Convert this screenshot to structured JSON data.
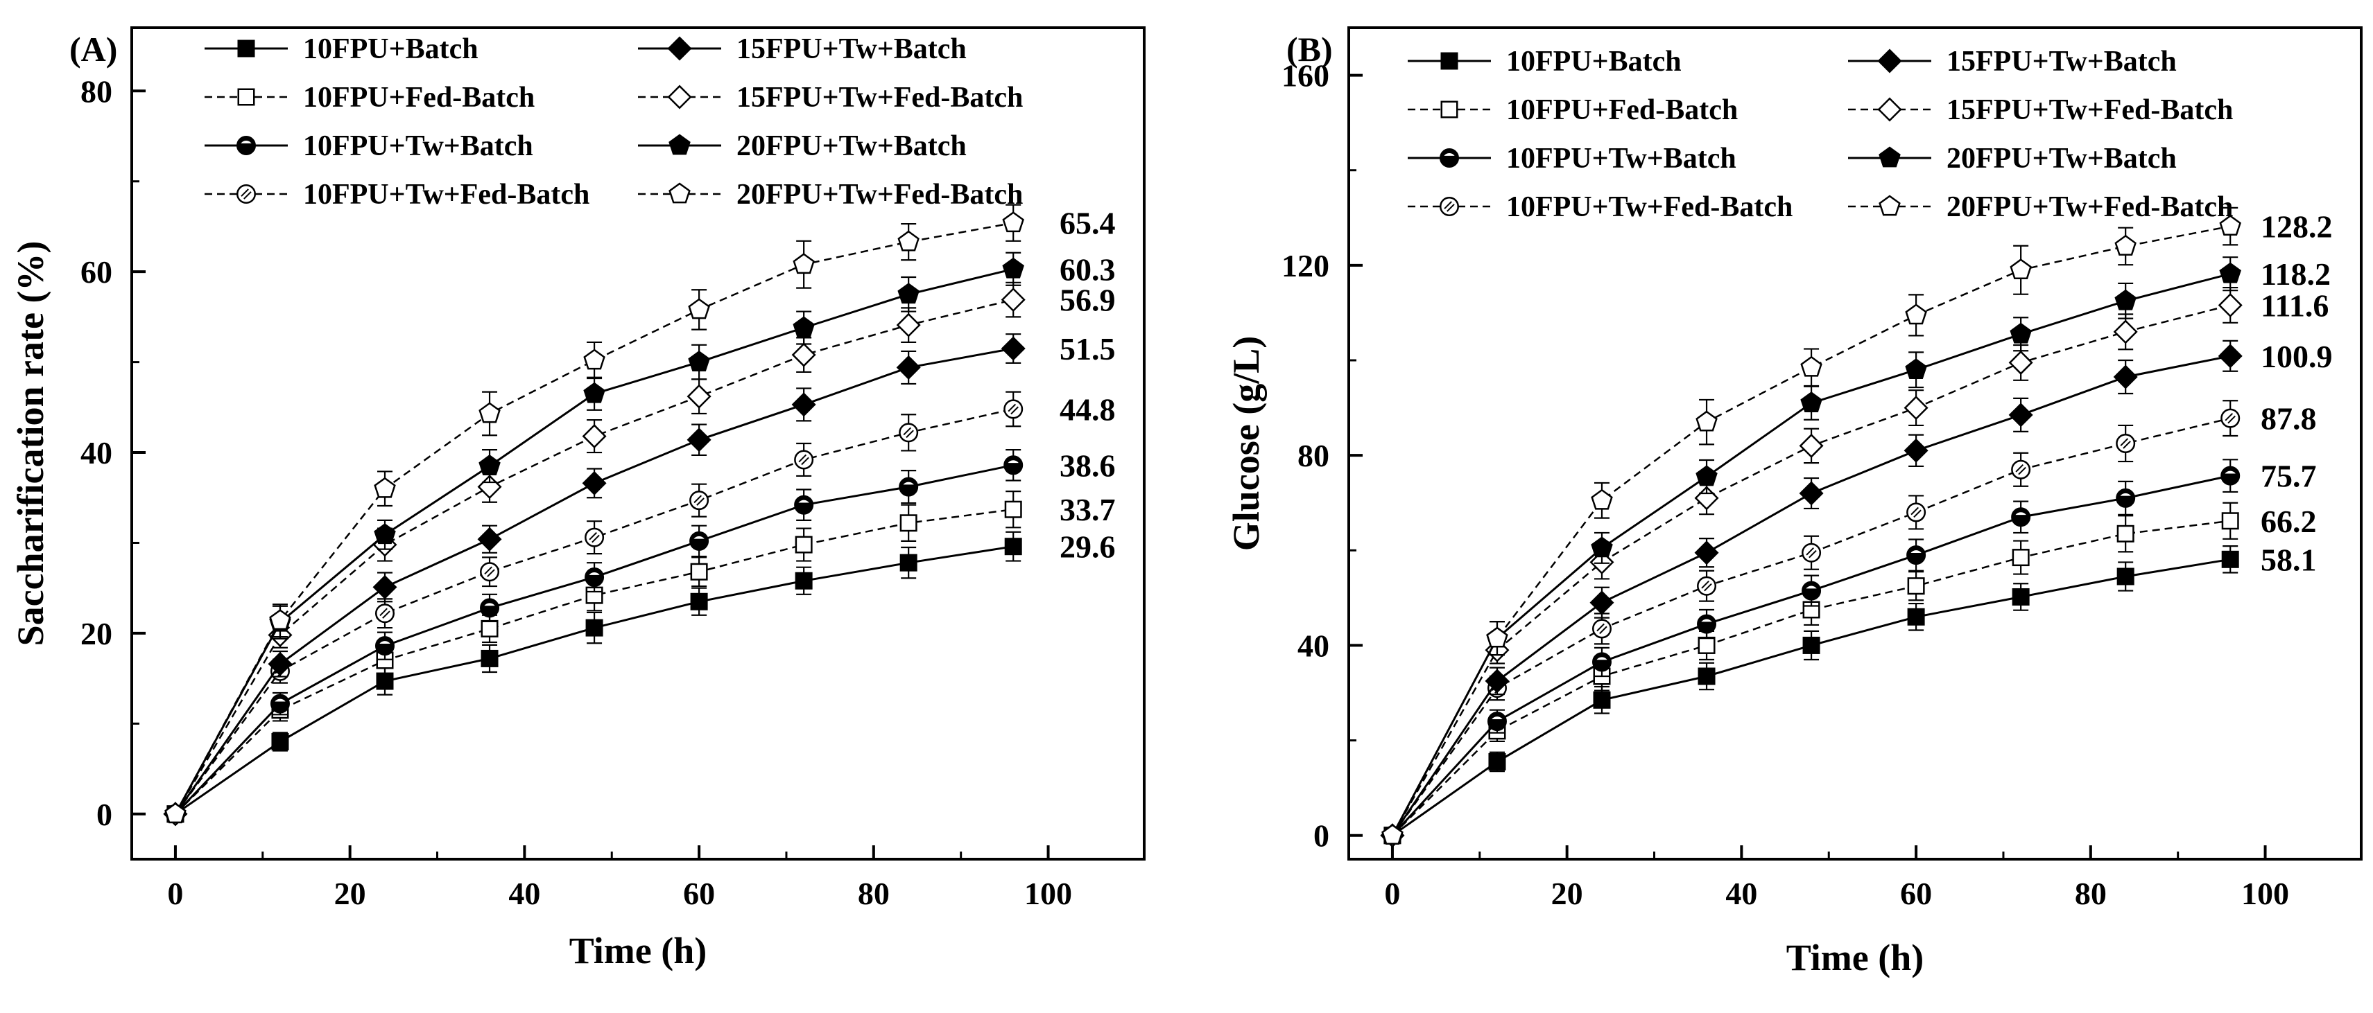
{
  "chart_data": [
    {
      "type": "line",
      "panel_label": "(A)",
      "xlabel": "Time (h)",
      "ylabel": "Saccharification rate (%)",
      "xlim": [
        -5,
        111
      ],
      "ylim": [
        -5,
        87
      ],
      "xticks": [
        0,
        20,
        40,
        60,
        80,
        100
      ],
      "yticks": [
        0,
        20,
        40,
        60,
        80
      ],
      "x": [
        0,
        12,
        24,
        36,
        48,
        60,
        72,
        84,
        96
      ],
      "series": [
        {
          "name": "10FPU+Batch",
          "marker": "square",
          "filled": true,
          "dashed": false,
          "values": [
            0,
            8.0,
            14.7,
            17.2,
            20.6,
            23.5,
            25.8,
            27.8,
            29.6
          ],
          "errors": [
            0,
            1.0,
            1.5,
            1.5,
            1.7,
            1.5,
            1.5,
            1.7,
            1.6
          ],
          "end_label": "29.6"
        },
        {
          "name": "10FPU+Fed-Batch",
          "marker": "square",
          "filled": false,
          "dashed": true,
          "values": [
            0,
            11.5,
            17.0,
            20.5,
            24.2,
            26.8,
            29.8,
            32.2,
            33.7
          ],
          "errors": [
            0,
            1.2,
            1.5,
            1.5,
            1.7,
            1.6,
            1.8,
            2.0,
            2.0
          ],
          "end_label": "33.7"
        },
        {
          "name": "10FPU+Tw+Batch",
          "marker": "halfcircle",
          "filled": true,
          "dashed": false,
          "values": [
            0,
            12.2,
            18.6,
            22.8,
            26.2,
            30.2,
            34.2,
            36.2,
            38.6
          ],
          "errors": [
            0,
            1.2,
            1.5,
            1.5,
            1.6,
            1.7,
            1.7,
            1.8,
            1.7
          ],
          "end_label": "38.6"
        },
        {
          "name": "10FPU+Tw+Fed-Batch",
          "marker": "circle-x",
          "filled": false,
          "dashed": true,
          "values": [
            0,
            15.8,
            22.2,
            26.8,
            30.6,
            34.7,
            39.2,
            42.2,
            44.8
          ],
          "errors": [
            0,
            1.3,
            1.6,
            1.6,
            1.8,
            1.8,
            1.8,
            2.0,
            1.9
          ],
          "end_label": "44.8"
        },
        {
          "name": "15FPU+Tw+Batch",
          "marker": "diamond",
          "filled": true,
          "dashed": false,
          "values": [
            0,
            16.6,
            25.1,
            30.4,
            36.6,
            41.4,
            45.3,
            49.4,
            51.5
          ],
          "errors": [
            0,
            1.4,
            1.6,
            1.5,
            1.6,
            1.7,
            1.8,
            1.8,
            1.6
          ],
          "end_label": "51.5"
        },
        {
          "name": "15FPU+Tw+Fed-Batch",
          "marker": "diamond",
          "filled": false,
          "dashed": true,
          "values": [
            0,
            19.8,
            29.8,
            36.2,
            41.8,
            46.2,
            50.8,
            54.1,
            56.9
          ],
          "errors": [
            0,
            1.4,
            1.8,
            1.7,
            1.8,
            1.9,
            1.9,
            1.9,
            1.9
          ],
          "end_label": "56.9"
        },
        {
          "name": "20FPU+Tw+Batch",
          "marker": "pentagon",
          "filled": true,
          "dashed": false,
          "values": [
            0,
            21.2,
            30.9,
            38.5,
            46.5,
            50.0,
            53.8,
            57.5,
            60.3
          ],
          "errors": [
            0,
            1.8,
            1.6,
            1.8,
            1.8,
            1.9,
            1.8,
            1.9,
            1.8
          ],
          "end_label": "60.3"
        },
        {
          "name": "20FPU+Tw+Fed-Batch",
          "marker": "pentagon",
          "filled": false,
          "dashed": true,
          "values": [
            0,
            21.4,
            36.0,
            44.3,
            50.2,
            55.8,
            60.8,
            63.3,
            65.4
          ],
          "errors": [
            0,
            1.8,
            1.9,
            2.4,
            2.0,
            2.2,
            2.6,
            2.0,
            2.0
          ],
          "end_label": "65.4"
        }
      ],
      "legend": {
        "columns": 2,
        "placement": "top-left"
      }
    },
    {
      "type": "line",
      "panel_label": "(B)",
      "xlabel": "Time (h)",
      "ylabel": "Glucose (g/L)",
      "xlim": [
        -5,
        111
      ],
      "ylim": [
        -5,
        170
      ],
      "xticks": [
        0,
        20,
        40,
        60,
        80,
        100
      ],
      "yticks": [
        0,
        40,
        80,
        120,
        160
      ],
      "x": [
        0,
        12,
        24,
        36,
        48,
        60,
        72,
        84,
        96
      ],
      "series": [
        {
          "name": "10FPU+Batch",
          "marker": "square",
          "filled": true,
          "dashed": false,
          "values": [
            0,
            15.5,
            28.5,
            33.5,
            40.0,
            46.0,
            50.2,
            54.5,
            58.1
          ],
          "errors": [
            0,
            2.0,
            2.8,
            2.8,
            3.0,
            2.8,
            2.8,
            3.0,
            2.8
          ],
          "end_label": "58.1"
        },
        {
          "name": "10FPU+Fed-Batch",
          "marker": "square",
          "filled": false,
          "dashed": true,
          "values": [
            0,
            22.0,
            33.5,
            40.0,
            47.5,
            52.5,
            58.5,
            63.5,
            66.2
          ],
          "errors": [
            0,
            2.2,
            3.0,
            3.0,
            3.2,
            3.0,
            3.5,
            3.8,
            3.8
          ],
          "end_label": "66.2"
        },
        {
          "name": "10FPU+Tw+Batch",
          "marker": "halfcircle",
          "filled": true,
          "dashed": false,
          "values": [
            0,
            24.0,
            36.5,
            44.5,
            51.5,
            59.0,
            67.0,
            71.0,
            75.7
          ],
          "errors": [
            0,
            2.4,
            3.0,
            3.0,
            3.2,
            3.3,
            3.3,
            3.5,
            3.4
          ],
          "end_label": "75.7"
        },
        {
          "name": "10FPU+Tw+Fed-Batch",
          "marker": "circle-x",
          "filled": false,
          "dashed": true,
          "values": [
            0,
            31.0,
            43.5,
            52.5,
            59.5,
            68.0,
            77.0,
            82.5,
            87.8
          ],
          "errors": [
            0,
            2.5,
            3.2,
            3.2,
            3.5,
            3.5,
            3.5,
            3.8,
            3.7
          ],
          "end_label": "87.8"
        },
        {
          "name": "15FPU+Tw+Batch",
          "marker": "diamond",
          "filled": true,
          "dashed": false,
          "values": [
            0,
            32.5,
            49.0,
            59.5,
            72.0,
            81.0,
            88.5,
            96.5,
            100.9
          ],
          "errors": [
            0,
            2.8,
            3.2,
            3.0,
            3.2,
            3.3,
            3.5,
            3.5,
            3.2
          ],
          "end_label": "100.9"
        },
        {
          "name": "15FPU+Tw+Fed-Batch",
          "marker": "diamond",
          "filled": false,
          "dashed": true,
          "values": [
            0,
            39.0,
            57.5,
            71.0,
            82.0,
            90.0,
            99.5,
            106.0,
            111.6
          ],
          "errors": [
            0,
            2.8,
            3.5,
            3.4,
            3.6,
            3.7,
            3.7,
            3.7,
            3.7
          ],
          "end_label": "111.6"
        },
        {
          "name": "20FPU+Tw+Batch",
          "marker": "pentagon",
          "filled": true,
          "dashed": false,
          "values": [
            0,
            41.5,
            60.5,
            75.5,
            91.0,
            98.0,
            105.5,
            112.5,
            118.2
          ],
          "errors": [
            0,
            3.5,
            3.2,
            3.5,
            3.5,
            3.7,
            3.5,
            3.7,
            3.5
          ],
          "end_label": "118.2"
        },
        {
          "name": "20FPU+Tw+Fed-Batch",
          "marker": "pentagon",
          "filled": false,
          "dashed": true,
          "values": [
            0,
            41.5,
            70.5,
            87.0,
            98.5,
            109.5,
            119.0,
            124.0,
            128.2
          ],
          "errors": [
            0,
            3.5,
            3.7,
            4.7,
            3.9,
            4.3,
            5.1,
            3.9,
            3.9
          ],
          "end_label": "128.2"
        }
      ],
      "legend": {
        "columns": 2,
        "placement": "top-left"
      }
    }
  ]
}
